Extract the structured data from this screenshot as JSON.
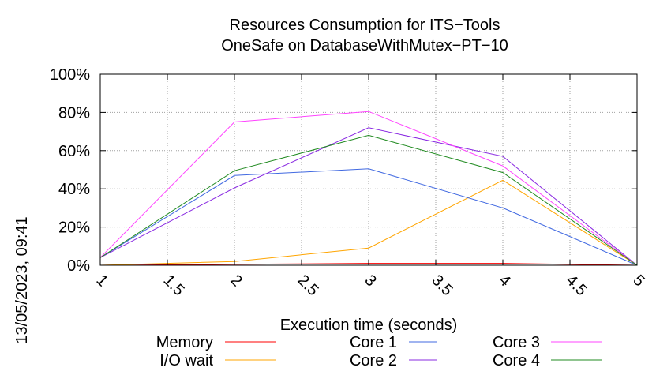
{
  "chart_data": {
    "type": "line",
    "title": "Resources Consumption for ITS−Tools",
    "subtitle": "OneSafe on DatabaseWithMutex−PT−10",
    "xlabel": "Execution time (seconds)",
    "ylabel": "",
    "side_label": "13/05/2023, 09:41",
    "xlim": [
      1,
      5
    ],
    "ylim": [
      0,
      100
    ],
    "x_ticks": [
      1,
      1.5,
      2,
      2.5,
      3,
      3.5,
      4,
      4.5,
      5
    ],
    "x_tick_labels": [
      "1",
      "1.5",
      "2",
      "2.5",
      "3",
      "3.5",
      "4",
      "4.5",
      "5"
    ],
    "y_ticks": [
      0,
      20,
      40,
      60,
      80,
      100
    ],
    "y_tick_labels": [
      "0%",
      "20%",
      "40%",
      "60%",
      "80%",
      "100%"
    ],
    "grid": true,
    "legend_position": "bottom",
    "x": [
      1,
      2,
      3,
      4,
      5
    ],
    "series": [
      {
        "name": "Memory",
        "color": "#ff0000",
        "values": [
          0,
          0.5,
          1,
          1,
          0
        ]
      },
      {
        "name": "I/O wait",
        "color": "#ffa500",
        "values": [
          0,
          2,
          9,
          44.5,
          0
        ]
      },
      {
        "name": "Core 1",
        "color": "#4169e1",
        "values": [
          4,
          47,
          50.5,
          30,
          0
        ]
      },
      {
        "name": "Core 2",
        "color": "#8a2be2",
        "values": [
          4,
          40.5,
          72,
          57,
          0
        ]
      },
      {
        "name": "Core 3",
        "color": "#ff44ff",
        "values": [
          4,
          75,
          80.5,
          52,
          0
        ]
      },
      {
        "name": "Core 4",
        "color": "#228b22",
        "values": [
          4,
          49.5,
          68,
          48.5,
          0
        ]
      }
    ]
  }
}
